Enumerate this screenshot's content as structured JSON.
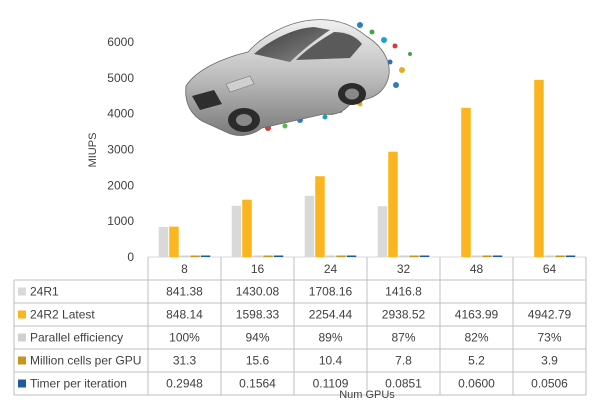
{
  "chart_data": {
    "type": "bar",
    "categories": [
      "8",
      "16",
      "24",
      "32",
      "48",
      "64"
    ],
    "series": [
      {
        "name": "24R1",
        "color": "#d9d9d9",
        "values": [
          841.38,
          1430.08,
          1708.16,
          1416.8,
          null,
          null
        ],
        "labels": [
          "841.38",
          "1430.08",
          "1708.16",
          "1416.8",
          "",
          ""
        ]
      },
      {
        "name": "24R2 Latest",
        "color": "#fbb51f",
        "values": [
          848.14,
          1598.33,
          2254.44,
          2938.52,
          4163.99,
          4942.79
        ],
        "labels": [
          "848.14",
          "1598.33",
          "2254.44",
          "2938.52",
          "4163.99",
          "4942.79"
        ]
      },
      {
        "name": "Parallel efficiency",
        "color": "#d0d0d0",
        "values": [
          1.0,
          0.94,
          0.89,
          0.87,
          0.82,
          0.73
        ],
        "labels": [
          "100%",
          "94%",
          "89%",
          "87%",
          "82%",
          "73%"
        ]
      },
      {
        "name": "Million cells per GPU",
        "color": "#c8961e",
        "values": [
          31.3,
          15.6,
          10.4,
          7.8,
          5.2,
          3.9
        ],
        "labels": [
          "31.3",
          "15.6",
          "10.4",
          "7.8",
          "5.2",
          "3.9"
        ]
      },
      {
        "name": "Timer per iteration",
        "color": "#1f5a9c",
        "values": [
          0.2948,
          0.1564,
          0.1109,
          0.0851,
          0.06,
          0.0506
        ],
        "labels": [
          "0.2948",
          "0.1564",
          "0.1109",
          "0.0851",
          "0.0600",
          "0.0506"
        ]
      }
    ],
    "xlabel": "Num GPUs",
    "ylabel": "MIUPS",
    "ylim": [
      0,
      6000
    ],
    "yticks": [
      "0",
      "1000",
      "2000",
      "3000",
      "4000",
      "5000",
      "6000"
    ],
    "grid": false,
    "legend": "data table"
  },
  "image": {
    "description_icon": "car-cfd-image"
  }
}
